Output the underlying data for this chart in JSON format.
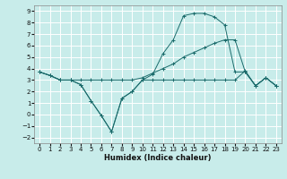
{
  "xlabel": "Humidex (Indice chaleur)",
  "bg_color": "#c8ecea",
  "grid_color": "#ffffff",
  "line_color": "#1a6b6b",
  "xlim": [
    -0.5,
    23.5
  ],
  "ylim": [
    -2.5,
    9.5
  ],
  "xticks": [
    0,
    1,
    2,
    3,
    4,
    5,
    6,
    7,
    8,
    9,
    10,
    11,
    12,
    13,
    14,
    15,
    16,
    17,
    18,
    19,
    20,
    21,
    22,
    23
  ],
  "yticks": [
    -2,
    -1,
    0,
    1,
    2,
    3,
    4,
    5,
    6,
    7,
    8,
    9
  ],
  "line1_x": [
    0,
    1,
    2,
    3,
    4,
    5,
    6,
    7,
    8,
    9,
    10,
    11,
    12,
    13,
    14,
    15,
    16,
    17,
    18,
    19,
    20,
    21,
    22,
    23
  ],
  "line1_y": [
    3.7,
    3.4,
    3.0,
    3.0,
    2.6,
    1.2,
    -0.1,
    -1.5,
    1.4,
    2.0,
    3.0,
    3.0,
    3.0,
    3.0,
    3.0,
    3.0,
    3.0,
    3.0,
    3.0,
    3.0,
    3.8,
    2.5,
    3.2,
    2.5
  ],
  "line2_x": [
    0,
    1,
    2,
    3,
    4,
    5,
    6,
    7,
    8,
    9,
    10,
    11,
    12,
    13,
    14,
    15,
    16,
    17,
    18,
    19,
    20,
    21,
    22,
    23
  ],
  "line2_y": [
    3.7,
    3.4,
    3.0,
    3.0,
    3.0,
    3.0,
    3.0,
    3.0,
    3.0,
    3.0,
    3.2,
    3.6,
    4.0,
    4.4,
    5.0,
    5.4,
    5.8,
    6.2,
    6.5,
    6.5,
    3.7,
    2.5,
    3.2,
    2.5
  ],
  "line3_x": [
    0,
    1,
    2,
    3,
    4,
    5,
    6,
    7,
    8,
    9,
    10,
    11,
    12,
    13,
    14,
    15,
    16,
    17,
    18,
    19,
    20,
    21,
    22,
    23
  ],
  "line3_y": [
    3.7,
    3.4,
    3.0,
    3.0,
    2.6,
    1.2,
    -0.1,
    -1.5,
    1.4,
    2.0,
    3.0,
    3.5,
    5.3,
    6.5,
    8.6,
    8.8,
    8.8,
    8.5,
    7.8,
    3.7,
    3.7,
    2.5,
    3.2,
    2.5
  ],
  "xlabel_fontsize": 6.0,
  "tick_fontsize": 5.0,
  "linewidth": 0.7,
  "markersize": 2.5
}
